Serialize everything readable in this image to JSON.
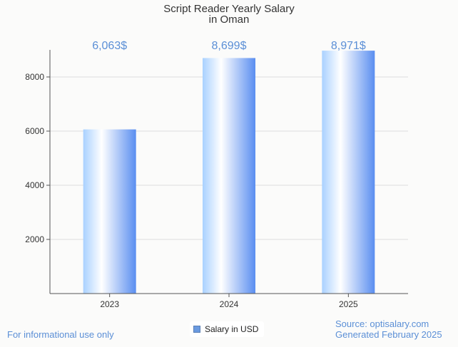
{
  "colors": {
    "accent": "#5b8fd6",
    "bar_light": "#ffffff",
    "bar_mid": "#a9d1ff",
    "bar_dark": "#5a8ef0",
    "legend_swatch": "#6a9ae0",
    "grid": "#dddddd",
    "axis": "#555555"
  },
  "footer": {
    "left_note": "For informational use only",
    "source": "Source: optisalary.com",
    "generated": "Generated February 2025"
  },
  "chart_data": {
    "type": "bar",
    "title_lines": [
      "Script Reader Yearly Salary",
      "in Oman"
    ],
    "categories": [
      "2023",
      "2024",
      "2025"
    ],
    "series": [
      {
        "name": "Salary in USD",
        "values": [
          6063,
          8699,
          8971
        ]
      }
    ],
    "data_labels": [
      "6,063$",
      "8,699$",
      "8,971$"
    ],
    "yticks": [
      2000,
      4000,
      6000,
      8000
    ],
    "ylim": [
      0,
      9000
    ],
    "grid": true,
    "legend_position": "bottom-center",
    "xlabel": "",
    "ylabel": ""
  }
}
